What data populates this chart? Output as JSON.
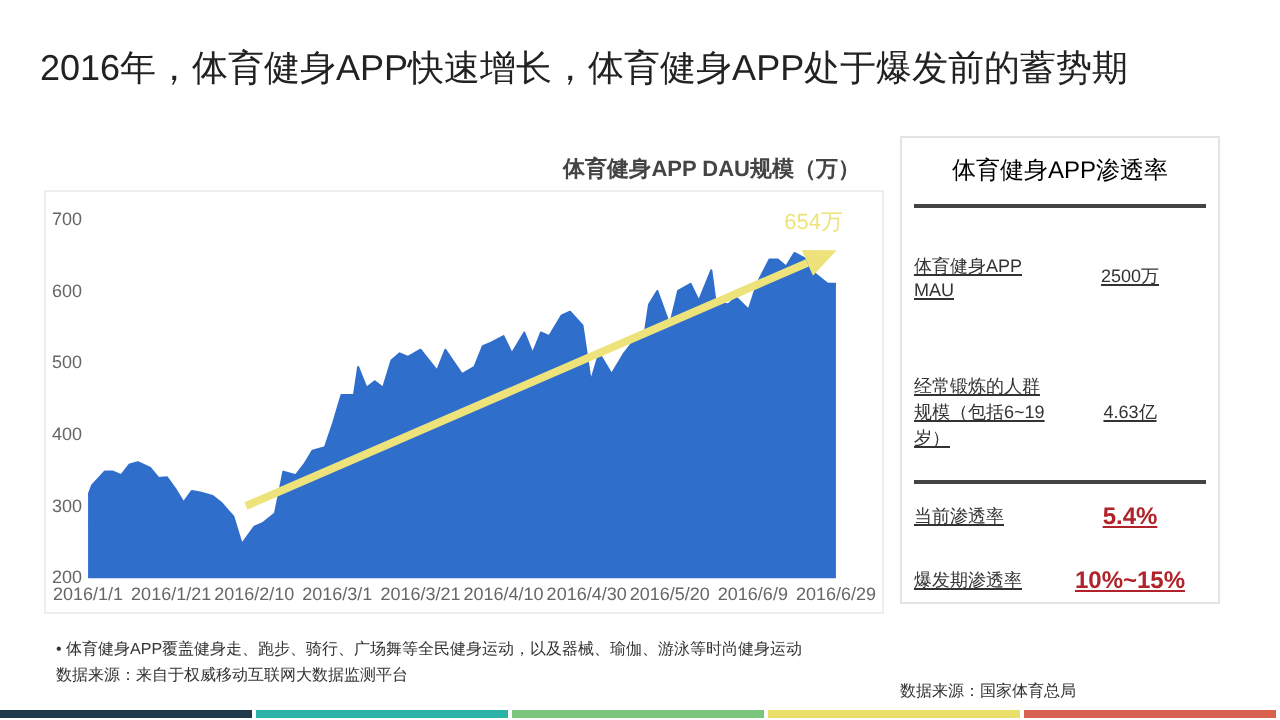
{
  "chart_data": [
    {
      "type": "area",
      "title": "2016年，体育健身APP快速增长，体育健身APP处于爆发前的蓄势期",
      "subtitle": "体育健身APP DAU规模（万）",
      "xlim": [
        "2016-01-01",
        "2016-06-29"
      ],
      "xticks": [
        {
          "value": "2016-01-01",
          "label": "2016/1/1"
        },
        {
          "value": "2016-01-21",
          "label": "2016/1/21"
        },
        {
          "value": "2016-02-10",
          "label": "2016/2/10"
        },
        {
          "value": "2016-03-01",
          "label": "2016/3/1"
        },
        {
          "value": "2016-03-21",
          "label": "2016/3/21"
        },
        {
          "value": "2016-04-10",
          "label": "2016/4/10"
        },
        {
          "value": "2016-04-30",
          "label": "2016/4/30"
        },
        {
          "value": "2016-05-20",
          "label": "2016/5/20"
        },
        {
          "value": "2016-06-09",
          "label": "2016/6/9"
        },
        {
          "value": "2016-06-29",
          "label": "2016/6/29"
        }
      ],
      "ylim": [
        200,
        700
      ],
      "yticks": [
        200,
        300,
        400,
        500,
        600,
        700
      ],
      "marker": "none",
      "series": [
        {
          "type": "area",
          "color": "#2f6ecb",
          "x": [
            "2016-01-01",
            "2016-01-02",
            "2016-01-05",
            "2016-01-07",
            "2016-01-09",
            "2016-01-11",
            "2016-01-13",
            "2016-01-16",
            "2016-01-18",
            "2016-01-20",
            "2016-01-22",
            "2016-01-24",
            "2016-01-26",
            "2016-01-28",
            "2016-01-31",
            "2016-02-02",
            "2016-02-05",
            "2016-02-07",
            "2016-02-10",
            "2016-02-12",
            "2016-02-15",
            "2016-02-17",
            "2016-02-20",
            "2016-02-22",
            "2016-02-24",
            "2016-02-27",
            "2016-02-29",
            "2016-03-02",
            "2016-03-05",
            "2016-03-06",
            "2016-03-08",
            "2016-03-10",
            "2016-03-12",
            "2016-03-14",
            "2016-03-16",
            "2016-03-18",
            "2016-03-21",
            "2016-03-25",
            "2016-03-27",
            "2016-03-31",
            "2016-04-03",
            "2016-04-05",
            "2016-04-07",
            "2016-04-10",
            "2016-04-12",
            "2016-04-15",
            "2016-04-17",
            "2016-04-19",
            "2016-04-21",
            "2016-04-24",
            "2016-04-26",
            "2016-04-29",
            "2016-05-01",
            "2016-05-03",
            "2016-05-06",
            "2016-05-09",
            "2016-05-11",
            "2016-05-14",
            "2016-05-15",
            "2016-05-17",
            "2016-05-20",
            "2016-05-22",
            "2016-05-25",
            "2016-05-27",
            "2016-05-30",
            "2016-05-31",
            "2016-06-03",
            "2016-06-05",
            "2016-06-08",
            "2016-06-10",
            "2016-06-13",
            "2016-06-15",
            "2016-06-17",
            "2016-06-19",
            "2016-06-22",
            "2016-06-24",
            "2016-06-27",
            "2016-06-29"
          ],
          "values": [
            315,
            330,
            349,
            349,
            344,
            359,
            362,
            354,
            340,
            341,
            325,
            306,
            322,
            320,
            315,
            306,
            286,
            248,
            272,
            277,
            291,
            349,
            344,
            359,
            378,
            383,
            417,
            456,
            456,
            495,
            466,
            475,
            466,
            504,
            514,
            509,
            519,
            490,
            519,
            485,
            495,
            524,
            529,
            538,
            514,
            543,
            514,
            543,
            538,
            567,
            572,
            553,
            475,
            514,
            485,
            514,
            529,
            543,
            582,
            601,
            553,
            601,
            611,
            587,
            630,
            587,
            582,
            592,
            575,
            611,
            645,
            645,
            635,
            654,
            645,
            625,
            611,
            611
          ]
        }
      ],
      "annotations": [
        "654万",
        "•  体育健身APP覆盖健身走、跑步、骑行、广场舞等全民健身运动，以及器械、瑜伽、游泳等时尚健身运动",
        "数据来源：来自于权威移动互联网大数据监测平台"
      ]
    },
    {
      "type": "other",
      "title": "体育健身APP渗透率",
      "annotations": [
        "体育健身APP MAU",
        "2500万",
        "经常锻炼的人群规模（包括6~19岁）",
        "4.63亿",
        "当前渗透率",
        "5.4%",
        "爆发期渗透率",
        "10%~15%",
        "数据来源：国家体育总局"
      ]
    }
  ]
}
